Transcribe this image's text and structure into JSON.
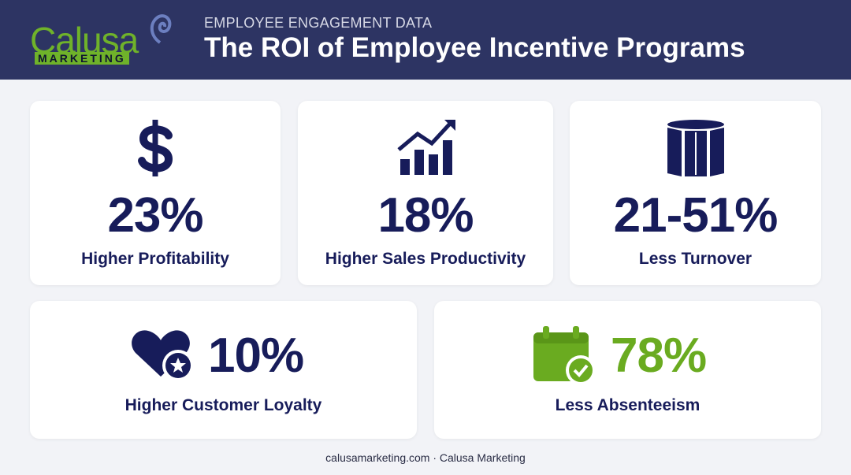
{
  "header": {
    "logo": {
      "name": "Calusa",
      "tagline": "MARKETING"
    },
    "eyebrow": "EMPLOYEE ENGAGEMENT DATA",
    "title": "The ROI of Employee Incentive Programs"
  },
  "stats": [
    {
      "value": "23%",
      "label": "Higher Profitability"
    },
    {
      "value": "18%",
      "label": "Higher Sales Productivity"
    },
    {
      "value": "21-51%",
      "label": "Less Turnover"
    },
    {
      "value": "10%",
      "label": "Higher Customer Loyalty"
    },
    {
      "value": "78%",
      "label": "Less Absenteeism"
    }
  ],
  "footer": "calusamarketing.com · Calusa Marketing"
}
